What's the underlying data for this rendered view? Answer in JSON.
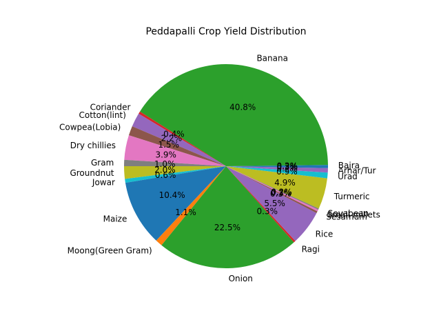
{
  "chart_data": {
    "type": "pie",
    "title": "Peddapalli Crop Yield Distribution",
    "start_angle": 0,
    "direction": "counterclockwise",
    "slices": [
      {
        "label": "Bajra",
        "value": 0.2,
        "pct": "0.2%",
        "color": "#1f77b4"
      },
      {
        "label": "Banana",
        "value": 40.8,
        "pct": "40.8%",
        "color": "#2ca02c"
      },
      {
        "label": "Coriander",
        "value": 0.4,
        "pct": "0.4%",
        "color": "#d62728"
      },
      {
        "label": "Cotton(lint)",
        "value": 2.2,
        "pct": "2.2%",
        "color": "#9467bd"
      },
      {
        "label": "Cowpea(Lobia)",
        "value": 1.5,
        "pct": "1.5%",
        "color": "#8c564b"
      },
      {
        "label": "Dry chillies",
        "value": 3.9,
        "pct": "3.9%",
        "color": "#e377c2"
      },
      {
        "label": "Gram",
        "value": 1.0,
        "pct": "1.0%",
        "color": "#7f7f7f"
      },
      {
        "label": "Groundnut",
        "value": 2.0,
        "pct": "2.0%",
        "color": "#bcbd22"
      },
      {
        "label": "Jowar",
        "value": 0.6,
        "pct": "0.6%",
        "color": "#17becf"
      },
      {
        "label": "Maize",
        "value": 10.4,
        "pct": "10.4%",
        "color": "#1f77b4"
      },
      {
        "label": "Moong(Green Gram)",
        "value": 1.1,
        "pct": "1.1%",
        "color": "#ff7f0e"
      },
      {
        "label": "Onion",
        "value": 22.5,
        "pct": "22.5%",
        "color": "#2ca02c"
      },
      {
        "label": "Ragi",
        "value": 0.3,
        "pct": "0.3%",
        "color": "#d62728"
      },
      {
        "label": "Rice",
        "value": 5.5,
        "pct": "5.5%",
        "color": "#9467bd"
      },
      {
        "label": "Sesamum",
        "value": 0.3,
        "pct": "0.3%",
        "color": "#8c564b"
      },
      {
        "label": "Small millets",
        "value": 0.3,
        "pct": "0.3%",
        "color": "#e377c2"
      },
      {
        "label": "Soyabean",
        "value": 0.2,
        "pct": "0.2%",
        "color": "#7f7f7f"
      },
      {
        "label": "Turmeric",
        "value": 4.9,
        "pct": "4.9%",
        "color": "#bcbd22"
      },
      {
        "label": "Urad",
        "value": 0.9,
        "pct": "0.9%",
        "color": "#17becf"
      },
      {
        "label": "Arhar/Tur",
        "value": 0.7,
        "pct": "0.7%",
        "color": "#9467bd"
      },
      {
        "label": "",
        "value": 0.3,
        "pct": "0.3%",
        "color": "#1f77b4"
      }
    ]
  }
}
